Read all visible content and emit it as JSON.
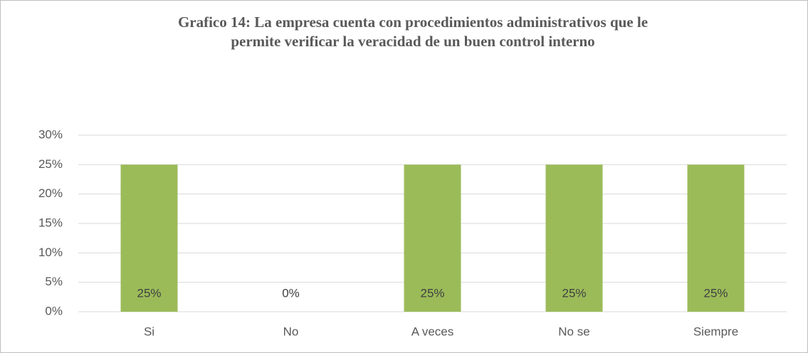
{
  "chart_data": {
    "type": "bar",
    "title": [
      "Grafico 14: La empresa cuenta con procedimientos administrativos que le",
      "permite verificar la veracidad de un buen control interno"
    ],
    "categories": [
      "Si",
      "No",
      "A veces",
      "No se",
      "Siempre"
    ],
    "values": [
      25,
      0,
      25,
      25,
      25
    ],
    "value_labels": [
      "25%",
      "0%",
      "25%",
      "25%",
      "25%"
    ],
    "color": "#9bbb59",
    "ylim": [
      0,
      30
    ],
    "yticks": [
      {
        "value": 0,
        "label": "0%"
      },
      {
        "value": 5,
        "label": "5%"
      },
      {
        "value": 10,
        "label": "10%"
      },
      {
        "value": 15,
        "label": "15%"
      },
      {
        "value": 20,
        "label": "20%"
      },
      {
        "value": 25,
        "label": "25%"
      },
      {
        "value": 30,
        "label": "30%"
      }
    ],
    "grid": true
  }
}
